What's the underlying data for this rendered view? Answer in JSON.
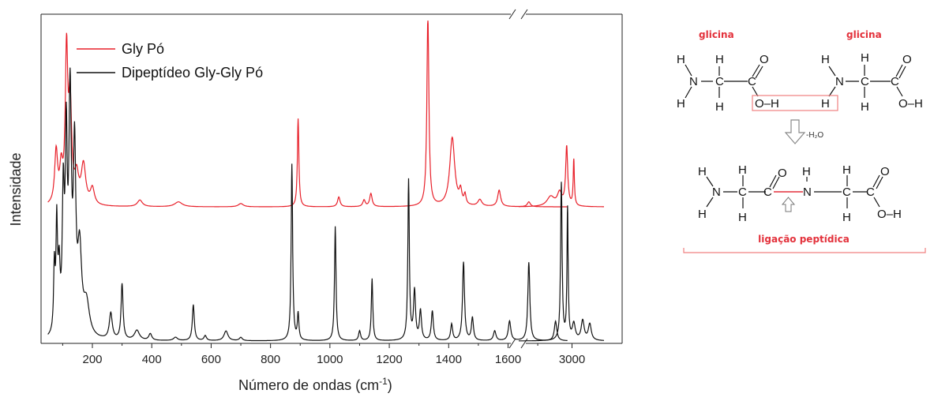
{
  "chart_data": {
    "type": "line",
    "xlabel": "Número de ondas (cm",
    "xlabel_sup": "-1",
    "xlabel_close": ")",
    "ylabel": "Intensidade",
    "x_segments": [
      [
        50,
        1800
      ],
      [
        2700,
        3180
      ]
    ],
    "x_ticks": [
      "200",
      "400",
      "600",
      "800",
      "1000",
      "1200",
      "1400",
      "1600",
      "3000"
    ],
    "y_ticks_visible": false,
    "legend_position": "top-left",
    "series": [
      {
        "name": "Gly Pó",
        "color": "#e8202a",
        "baseline": 0.41,
        "peaks": [
          [
            78,
            0.16,
            6
          ],
          [
            95,
            0.1,
            6
          ],
          [
            113,
            0.45,
            5
          ],
          [
            125,
            0.3,
            6
          ],
          [
            147,
            0.08,
            8
          ],
          [
            170,
            0.12,
            9
          ],
          [
            200,
            0.05,
            8
          ],
          [
            360,
            0.02,
            10
          ],
          [
            490,
            0.015,
            15
          ],
          [
            700,
            0.01,
            10
          ],
          [
            893,
            0.27,
            3
          ],
          [
            1030,
            0.03,
            5
          ],
          [
            1115,
            0.02,
            5
          ],
          [
            1138,
            0.04,
            5
          ],
          [
            1330,
            0.59,
            4
          ],
          [
            1412,
            0.21,
            10
          ],
          [
            1440,
            0.04,
            5
          ],
          [
            1455,
            0.03,
            4
          ],
          [
            1505,
            0.02,
            8
          ],
          [
            1570,
            0.05,
            6
          ],
          [
            1670,
            0.015,
            6
          ],
          [
            2880,
            0.03,
            25
          ],
          [
            2930,
            0.04,
            15
          ],
          [
            2970,
            0.18,
            7
          ],
          [
            3010,
            0.14,
            4
          ]
        ]
      },
      {
        "name": "Dipeptídeo Gly-Gly Pó",
        "color": "#111111",
        "baseline": 0.0,
        "peaks": [
          [
            72,
            0.2,
            3
          ],
          [
            80,
            0.32,
            3
          ],
          [
            88,
            0.18,
            4
          ],
          [
            102,
            0.4,
            4
          ],
          [
            112,
            0.55,
            4
          ],
          [
            125,
            0.7,
            5
          ],
          [
            140,
            0.53,
            5
          ],
          [
            157,
            0.25,
            8
          ],
          [
            180,
            0.1,
            12
          ],
          [
            262,
            0.08,
            6
          ],
          [
            300,
            0.17,
            4
          ],
          [
            350,
            0.03,
            10
          ],
          [
            395,
            0.02,
            6
          ],
          [
            480,
            0.01,
            8
          ],
          [
            540,
            0.11,
            4
          ],
          [
            580,
            0.015,
            5
          ],
          [
            650,
            0.03,
            8
          ],
          [
            700,
            0.01,
            6
          ],
          [
            872,
            0.54,
            3
          ],
          [
            893,
            0.08,
            3
          ],
          [
            1018,
            0.35,
            3
          ],
          [
            1100,
            0.03,
            4
          ],
          [
            1142,
            0.19,
            3
          ],
          [
            1265,
            0.49,
            3
          ],
          [
            1285,
            0.15,
            4
          ],
          [
            1305,
            0.09,
            4
          ],
          [
            1345,
            0.09,
            4
          ],
          [
            1410,
            0.05,
            4
          ],
          [
            1450,
            0.24,
            4
          ],
          [
            1480,
            0.07,
            4
          ],
          [
            1555,
            0.03,
            5
          ],
          [
            1605,
            0.06,
            5
          ],
          [
            1670,
            0.24,
            4
          ],
          [
            1760,
            0.06,
            5
          ],
          [
            2940,
            0.48,
            5
          ],
          [
            2975,
            0.4,
            4
          ],
          [
            3010,
            0.05,
            10
          ],
          [
            3060,
            0.06,
            10
          ],
          [
            3100,
            0.05,
            10
          ]
        ]
      }
    ]
  },
  "scheme": {
    "label_left": "glicina",
    "label_right": "glicina",
    "water_label": "-H₂O",
    "bond_label": "ligação peptídica",
    "atoms": {
      "H": "H",
      "N": "N",
      "C": "C",
      "O": "O",
      "OH": "O–H",
      "OHend": "O–H"
    }
  }
}
